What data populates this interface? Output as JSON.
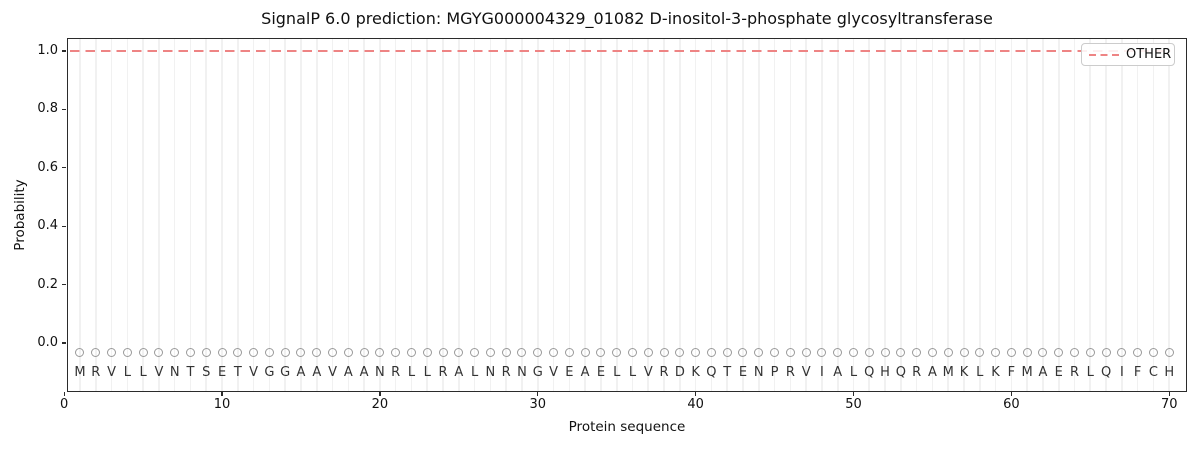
{
  "title": "SignalP 6.0 prediction: MGYG000004329_01082 D-inositol-3-phosphate glycosyltransferase",
  "chart_data": {
    "type": "line",
    "title": "SignalP 6.0 prediction: MGYG000004329_01082 D-inositol-3-phosphate glycosyltransferase",
    "xlabel": "Protein sequence",
    "ylabel": "Probability",
    "x_ticks": [
      0,
      10,
      20,
      30,
      40,
      50,
      60,
      70
    ],
    "y_ticks": [
      {
        "label": "0.0",
        "value": 0.0
      },
      {
        "label": "0.2",
        "value": 0.2
      },
      {
        "label": "0.4",
        "value": 0.4
      },
      {
        "label": "0.6",
        "value": 0.6
      },
      {
        "label": "0.8",
        "value": 0.8
      },
      {
        "label": "1.0",
        "value": 1.0
      }
    ],
    "xlim": [
      0.2,
      71.1
    ],
    "ylim": [
      -0.17,
      1.05
    ],
    "grid": {
      "vertical_per_residue": true,
      "horizontal": false
    },
    "series": [
      {
        "name": "OTHER",
        "linestyle": "dashed",
        "color": "#ee8484",
        "x_start": 1,
        "x_end": 70,
        "value_constant": 1.0,
        "note": "constant probability 1.0 across all 70 residues"
      }
    ],
    "sequence": "MRVLLVNTSETVGGAAVAANRLLRALNRNGVEAELLVRDKQTENPRVIALQHQRAMKLKFMAERLQIFCH",
    "sequence_length": 70,
    "residue_markers": {
      "glyph": "open-circle",
      "color": "#9a9a9a",
      "y_value": -0.05
    },
    "legend": {
      "position": "upper right",
      "entries": [
        {
          "label": "OTHER",
          "linestyle": "dashed",
          "color": "#ee8484"
        }
      ]
    }
  },
  "colors": {
    "line": "#ee8484",
    "grid": "#f1f1f1",
    "marker": "#9a9a9a",
    "letters": "#333333",
    "spine": "#2b2b2b",
    "legend_border": "#cccccc",
    "background": "#ffffff"
  }
}
